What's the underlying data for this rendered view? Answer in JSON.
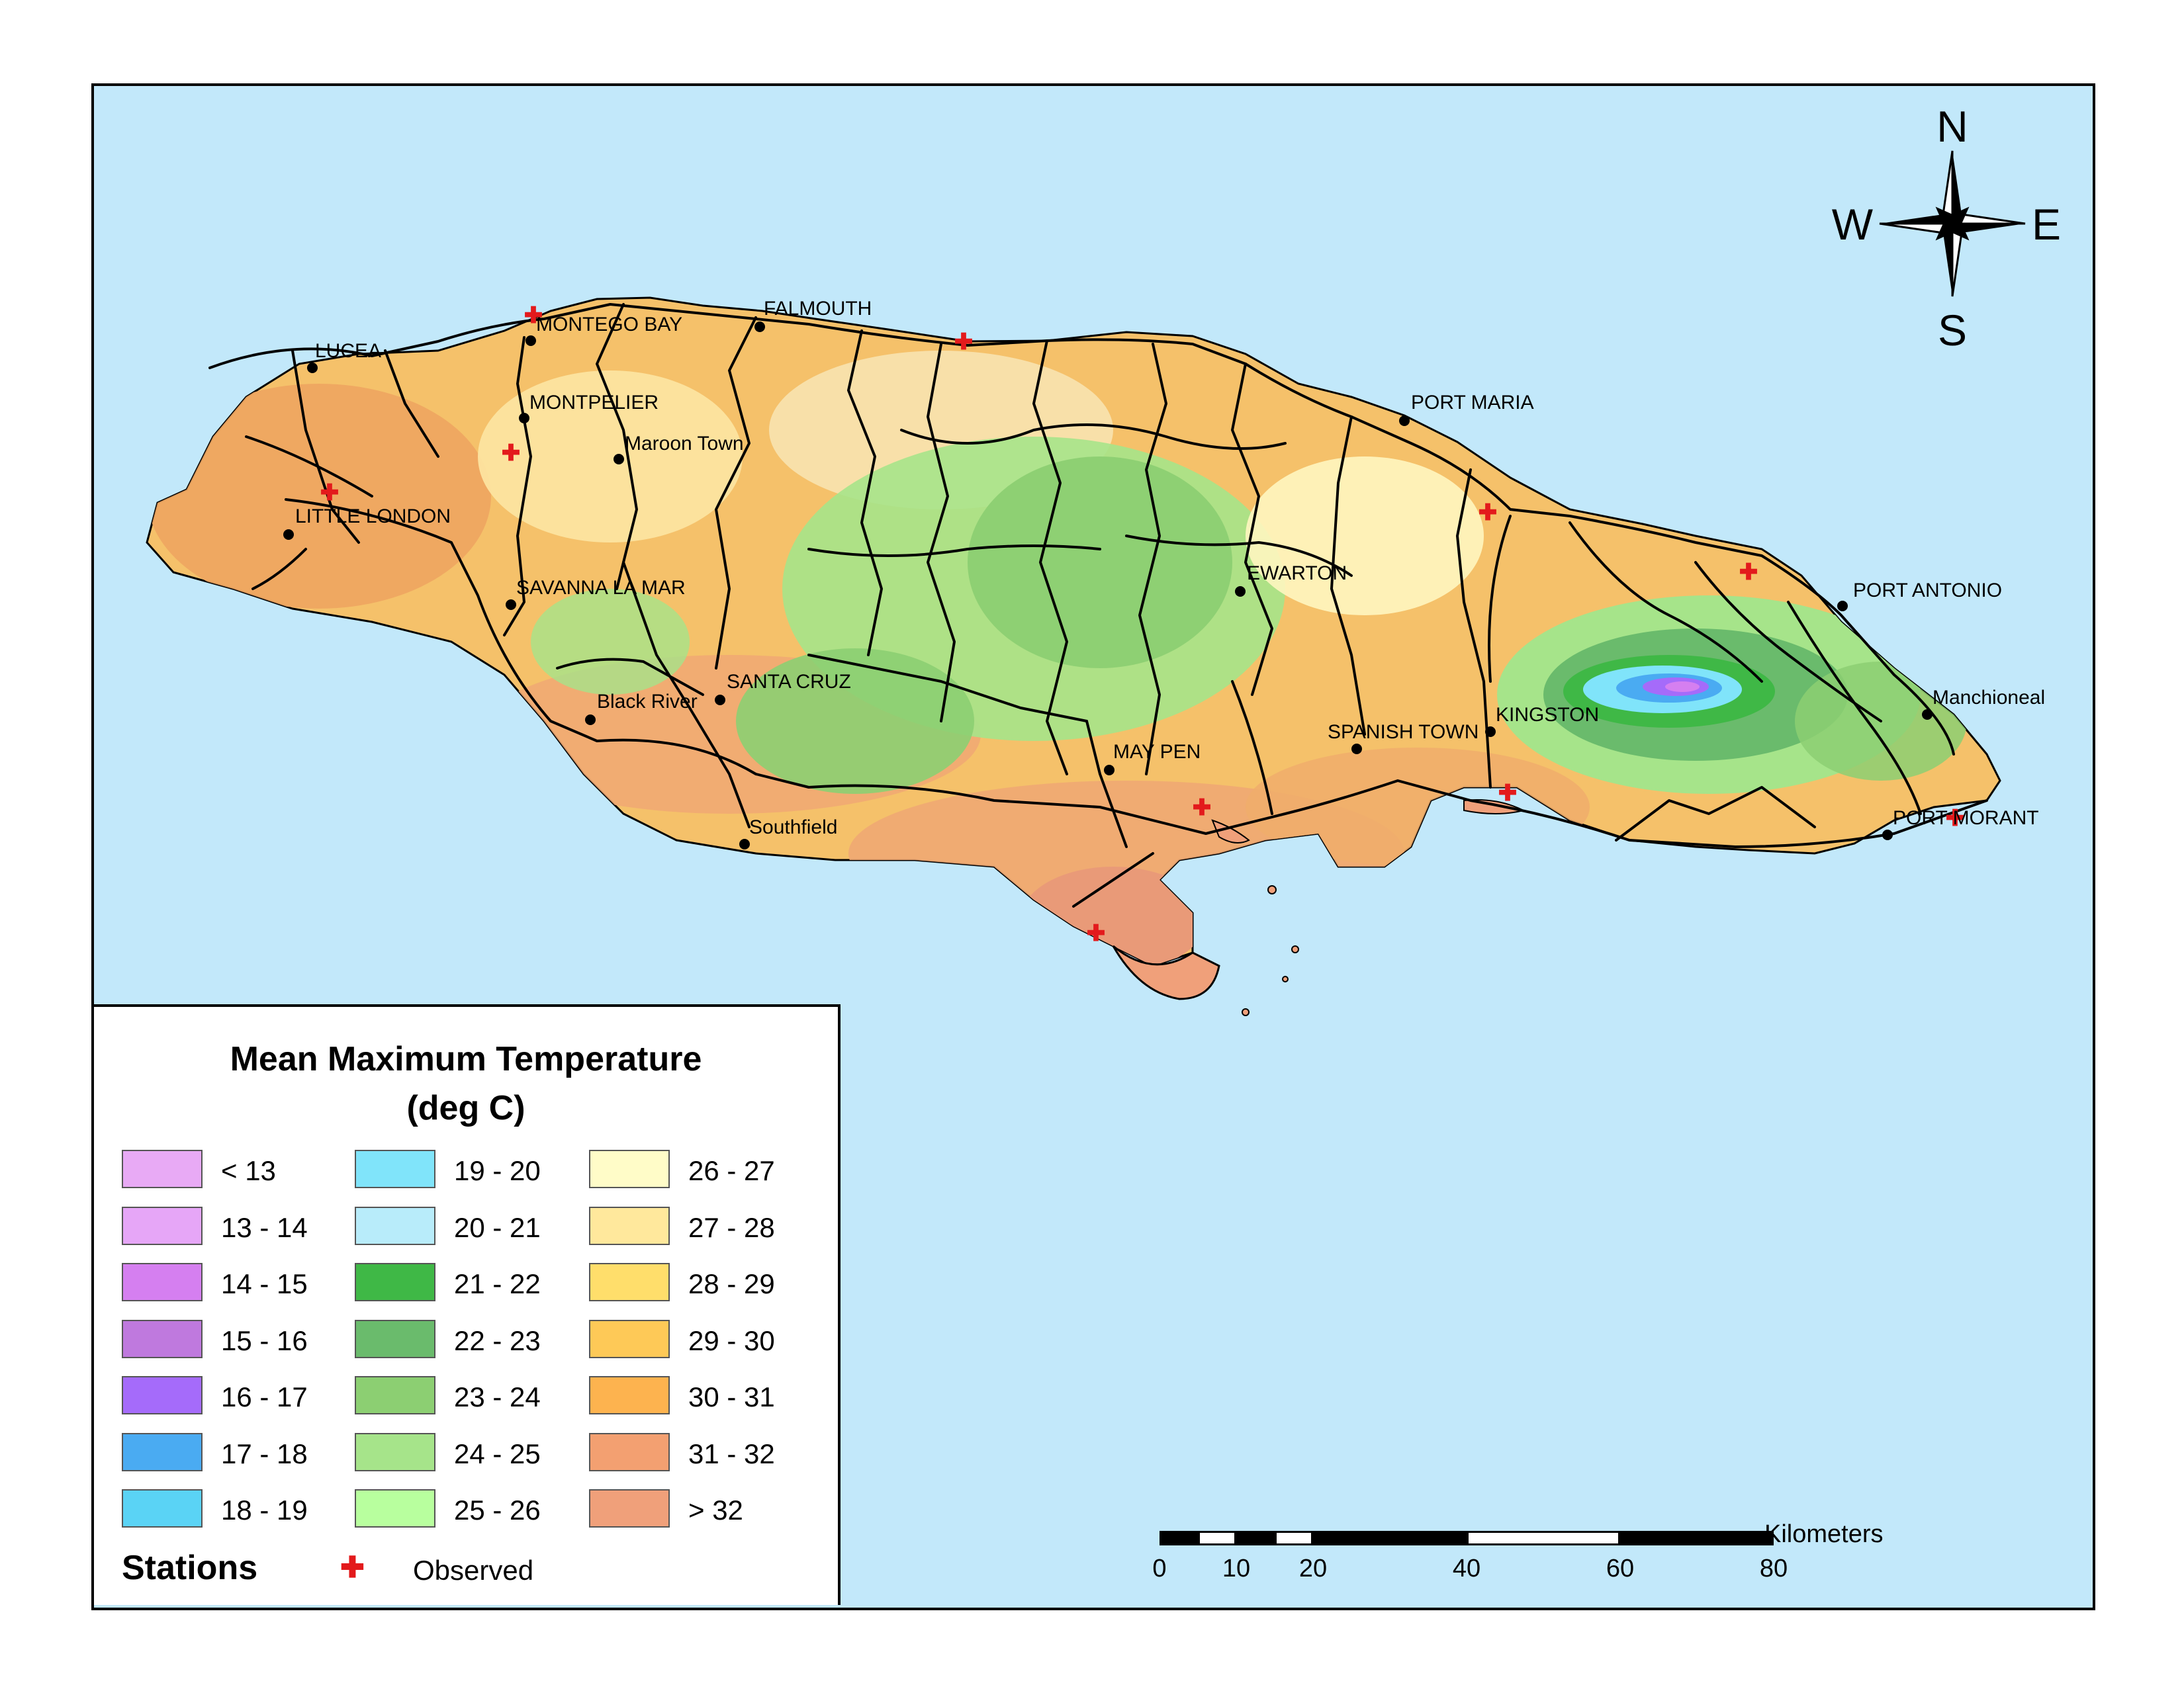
{
  "legend": {
    "title_line1": "Mean Maximum Temperature",
    "title_line2": "(deg C)",
    "classes": [
      {
        "label": "< 13",
        "color": "#e8aaf5"
      },
      {
        "label": "13 - 14",
        "color": "#e6a6f7"
      },
      {
        "label": "14 - 15",
        "color": "#d57ff0"
      },
      {
        "label": "15 - 16",
        "color": "#bf79de"
      },
      {
        "label": "16 - 17",
        "color": "#a56bfa"
      },
      {
        "label": "17 - 18",
        "color": "#4aabf2"
      },
      {
        "label": "18 - 19",
        "color": "#5ad3f5"
      },
      {
        "label": "19 - 20",
        "color": "#80e4fa"
      },
      {
        "label": "20 - 21",
        "color": "#b8ecfa"
      },
      {
        "label": "21 - 22",
        "color": "#3fb846"
      },
      {
        "label": "22 - 23",
        "color": "#6abb6c"
      },
      {
        "label": "23 - 24",
        "color": "#8ccf72"
      },
      {
        "label": "24 - 25",
        "color": "#a6e48a"
      },
      {
        "label": "25 - 26",
        "color": "#b8ff9e"
      },
      {
        "label": "26 - 27",
        "color": "#fffcc8"
      },
      {
        "label": "27 - 28",
        "color": "#ffe89c"
      },
      {
        "label": "28 - 29",
        "color": "#ffde6b"
      },
      {
        "label": "29 - 30",
        "color": "#fec957"
      },
      {
        "label": "30 - 31",
        "color": "#fdb34f"
      },
      {
        "label": "31 - 32",
        "color": "#f3a071"
      },
      {
        "label": "> 32",
        "color": "#f0a07a"
      }
    ],
    "stations_heading": "Stations",
    "observed_symbol": "✚",
    "observed_label": "Observed"
  },
  "compass": {
    "north": "N",
    "south": "S",
    "east": "E",
    "west": "W"
  },
  "scale_bar": {
    "unit": "Kilometers",
    "ticks": [
      {
        "value": 0,
        "label": "0"
      },
      {
        "value": 10,
        "label": "10"
      },
      {
        "value": 20,
        "label": "20"
      },
      {
        "value": 40,
        "label": "40"
      },
      {
        "value": 60,
        "label": "60"
      },
      {
        "value": 80,
        "label": "80"
      }
    ]
  },
  "towns": {
    "lucea": "LUCEA",
    "montego_bay": "MONTEGO BAY",
    "falmouth": "FALMOUTH",
    "montpelier": "MONTPELIER",
    "maroon_town": "Maroon Town",
    "little_london": "LITTLE LONDON",
    "savanna_la_mar": "SAVANNA LA MAR",
    "black_river": "Black River",
    "santa_cruz": "SANTA CRUZ",
    "southfield": "Southfield",
    "may_pen": "MAY PEN",
    "spanish_town": "SPANISH TOWN",
    "kingston": "KINGSTON",
    "ewarton": "EWARTON",
    "port_maria": "PORT MARIA",
    "port_antonio": "PORT ANTONIO",
    "manchioneal": "Manchioneal",
    "port_morant": "PORT MORANT"
  },
  "colors": {
    "sea": "#c2e8fa",
    "road": "#000000",
    "station": "#e31a1c"
  }
}
